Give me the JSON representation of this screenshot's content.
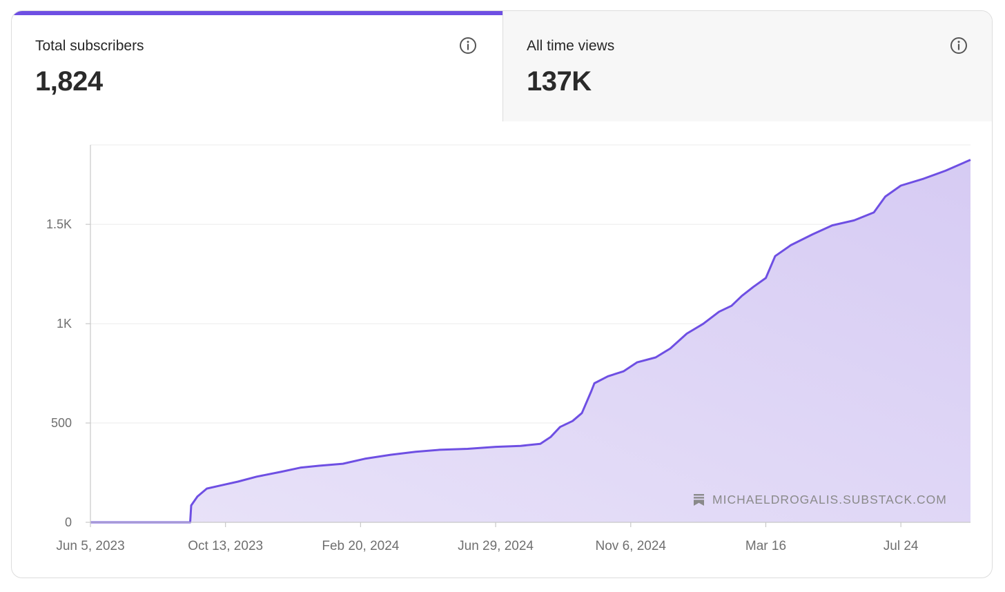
{
  "stats": {
    "subscribers_label": "Total subscribers",
    "subscribers_value": "1,824",
    "views_label": "All time views",
    "views_value": "137K"
  },
  "watermark": "MICHAELDROGALIS.SUBSTACK.COM",
  "colors": {
    "accent": "#6e4fe3",
    "fill": "#dcd2f5",
    "grid": "#ebebeb",
    "axis": "#c8c8c8",
    "tick_text": "#6f6f6f"
  },
  "icons": {
    "info": "info-circle-icon",
    "watermark": "substack-logo-icon"
  },
  "chart_data": {
    "type": "area",
    "xlabel": "",
    "ylabel": "",
    "ylim": [
      0,
      1900
    ],
    "yticks": [
      0,
      500,
      1000,
      1500
    ],
    "ytick_labels": [
      "0",
      "500",
      "1K",
      "1.5K"
    ],
    "xlim": [
      "2023-06-05",
      "2025-09-29"
    ],
    "xticks": [
      "2023-06-05",
      "2023-10-13",
      "2024-02-20",
      "2024-06-29",
      "2024-11-06",
      "2025-03-16",
      "2025-07-24"
    ],
    "xtick_labels": [
      "Jun 5, 2023",
      "Oct 13, 2023",
      "Feb 20, 2024",
      "Jun 29, 2024",
      "Nov 6, 2024",
      "Mar 16",
      "Jul 24"
    ],
    "grid": true,
    "series": [
      {
        "x": [
          "2023-06-05",
          "2023-09-09",
          "2023-09-10",
          "2023-09-16",
          "2023-09-25",
          "2023-10-08",
          "2023-10-25",
          "2023-11-12",
          "2023-12-06",
          "2023-12-24",
          "2024-01-11",
          "2024-02-03",
          "2024-02-24",
          "2024-03-20",
          "2024-04-13",
          "2024-05-06",
          "2024-06-02",
          "2024-06-29",
          "2024-07-23",
          "2024-08-11",
          "2024-08-21",
          "2024-08-30",
          "2024-09-11",
          "2024-09-20",
          "2024-09-29",
          "2024-10-02",
          "2024-10-15",
          "2024-10-30",
          "2024-11-12",
          "2024-11-30",
          "2024-12-14",
          "2024-12-30",
          "2025-01-15",
          "2025-01-30",
          "2025-02-11",
          "2025-02-21",
          "2025-03-04",
          "2025-03-16",
          "2025-03-25",
          "2025-04-09",
          "2025-04-30",
          "2025-05-19",
          "2025-06-09",
          "2025-06-28",
          "2025-07-09",
          "2025-07-24",
          "2025-08-15",
          "2025-09-05",
          "2025-09-29"
        ],
        "y": [
          0,
          0,
          85,
          130,
          170,
          185,
          205,
          230,
          255,
          275,
          285,
          295,
          320,
          340,
          355,
          365,
          370,
          380,
          385,
          395,
          430,
          480,
          510,
          550,
          660,
          700,
          735,
          760,
          805,
          830,
          875,
          950,
          1000,
          1060,
          1090,
          1140,
          1185,
          1230,
          1340,
          1395,
          1450,
          1495,
          1520,
          1560,
          1640,
          1695,
          1730,
          1770,
          1825
        ]
      }
    ]
  }
}
